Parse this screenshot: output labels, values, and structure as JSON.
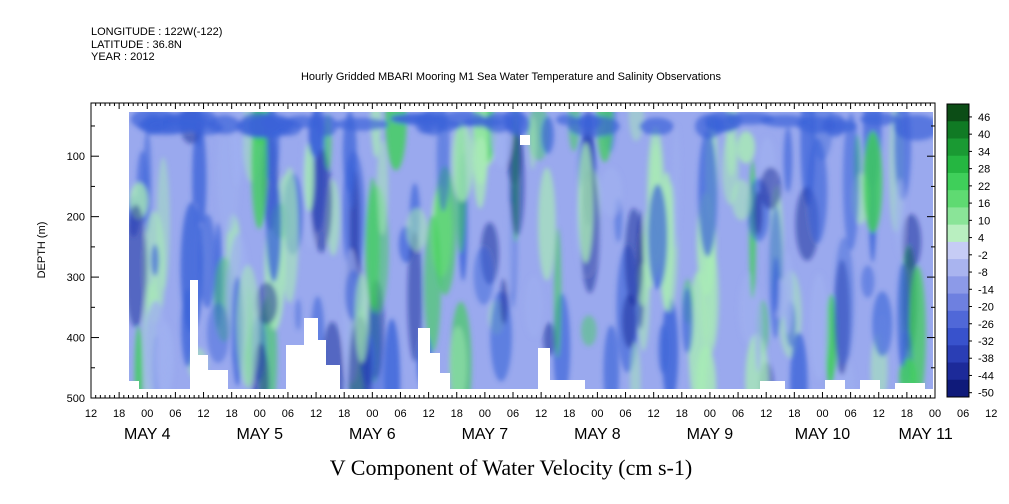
{
  "header": {
    "longitude": "LONGITUDE : 122W(-122)",
    "latitude": "LATITUDE : 36.8N",
    "year": "YEAR : 2012"
  },
  "chart_data": {
    "type": "heatmap",
    "title": "Hourly Gridded MBARI Mooring M1 Sea Water Temperature and Salinity Observations",
    "xlabel": "V Component of Water Velocity (cm s-1)",
    "ylabel": "DEPTH (m)",
    "ylim": [
      500,
      0
    ],
    "y_ticks": [
      "100",
      "200",
      "300",
      "400",
      "500"
    ],
    "x_hour_ticks": [
      "12",
      "18",
      "00",
      "06",
      "12",
      "18",
      "00",
      "06",
      "12",
      "18",
      "00",
      "06",
      "12",
      "18",
      "00",
      "06",
      "12",
      "18",
      "00",
      "06",
      "12",
      "18",
      "00",
      "06",
      "12",
      "18",
      "00",
      "06",
      "12",
      "18",
      "00",
      "06",
      "12"
    ],
    "day_labels": [
      {
        "label": "MAY  4",
        "hours": 12
      },
      {
        "label": "MAY  5",
        "hours": 36
      },
      {
        "label": "MAY  6",
        "hours": 60
      },
      {
        "label": "MAY  7",
        "hours": 84
      },
      {
        "label": "MAY  8",
        "hours": 108
      },
      {
        "label": "MAY  9",
        "hours": 132
      },
      {
        "label": "MAY 10",
        "hours": 156
      },
      {
        "label": "MAY 11",
        "hours": 178
      }
    ],
    "colorbar_labels": [
      "46",
      "40",
      "34",
      "28",
      "22",
      "16",
      "10",
      "4",
      "-2",
      "-8",
      "-14",
      "-20",
      "-26",
      "-32",
      "-38",
      "-44",
      "-50"
    ],
    "colorbar_range": [
      -50,
      52
    ],
    "colors": {
      "strong_negative": "#0a1a8c",
      "negative": "#3a63d8",
      "weak_negative": "#9fb0f0",
      "weak_positive": "#a8ecb4",
      "positive": "#3fcf5a",
      "strong_positive": "#0b5c1c"
    }
  }
}
